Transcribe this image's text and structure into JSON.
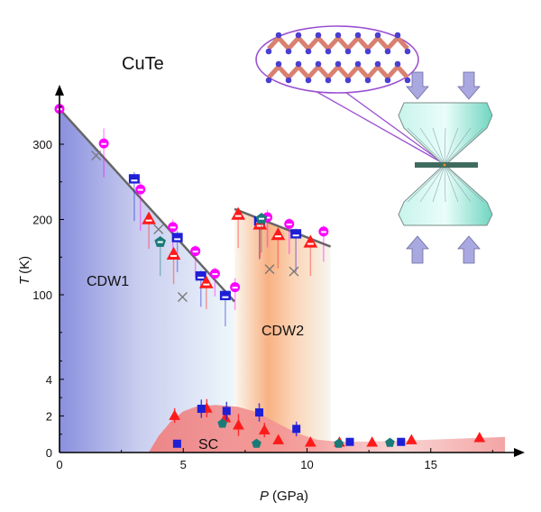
{
  "chart_data": {
    "type": "scatter",
    "title": "CuTe",
    "xlabel_italic": "P",
    "xlabel_unit": "(GPa)",
    "ylabel_italic": "T",
    "ylabel_unit": "(K)",
    "xlim": [
      0,
      18.5
    ],
    "y_axis_broken": true,
    "ylim_lower": [
      0,
      6
    ],
    "ylim_upper": [
      36,
      370
    ],
    "x_ticks": [
      "0",
      "5",
      "10",
      "15"
    ],
    "x_tick_values": [
      0,
      5,
      10,
      15
    ],
    "y_ticks": [
      "0",
      "2",
      "4",
      "100",
      "200",
      "300"
    ],
    "y_tick_values": [
      0,
      2,
      4,
      100,
      200,
      300
    ],
    "grid": false,
    "regions": [
      {
        "label": "CDW1",
        "color": "#8a90de",
        "at": [
          1.2,
          113
        ]
      },
      {
        "label": "CDW2",
        "color": "#f8b183",
        "at": [
          8.0,
          72
        ]
      },
      {
        "label": "SC",
        "color": "#f07d7d",
        "at": [
          5.0,
          0.5
        ]
      }
    ],
    "fit_lines": [
      {
        "region": "CDW1",
        "from": [
          0,
          347
        ],
        "to": [
          7.07,
          91
        ],
        "color": "#666666"
      },
      {
        "region": "CDW2",
        "from": [
          7.07,
          214
        ],
        "to": [
          10.95,
          164
        ],
        "color": "#666666"
      }
    ],
    "sc_dome_boundary": [
      [
        3.6,
        0
      ],
      [
        4.0,
        0.9
      ],
      [
        4.5,
        1.7
      ],
      [
        5.0,
        2.25
      ],
      [
        5.5,
        2.5
      ],
      [
        6.3,
        2.6
      ],
      [
        7.2,
        2.5
      ],
      [
        8.0,
        2.2
      ],
      [
        8.8,
        1.6
      ],
      [
        9.6,
        1.05
      ],
      [
        10.4,
        0.7
      ],
      [
        11.2,
        0.6
      ],
      [
        12.5,
        0.6
      ],
      [
        14,
        0.65
      ],
      [
        16,
        0.75
      ],
      [
        18,
        0.85
      ],
      [
        18,
        0
      ]
    ],
    "series": [
      {
        "marker": "half-filled-circle",
        "color": "#ff00ff",
        "points": [
          [
            0,
            347,
            0,
            0
          ],
          [
            1.79,
            301,
            45,
            20
          ],
          [
            3.27,
            240,
            55,
            10
          ],
          [
            4.58,
            190,
            40,
            10
          ],
          [
            5.49,
            158,
            35,
            8
          ],
          [
            6.28,
            128,
            30,
            8
          ],
          [
            7.09,
            110,
            30,
            12
          ],
          [
            8.4,
            203,
            40,
            10
          ],
          [
            9.28,
            194,
            40,
            8
          ],
          [
            10.67,
            184,
            40,
            8
          ]
        ]
      },
      {
        "marker": "half-filled-square",
        "color": "#1f1fd6",
        "points": [
          [
            3.02,
            253,
            55,
            10
          ],
          [
            4.76,
            175,
            45,
            10
          ],
          [
            5.71,
            124,
            40,
            8
          ],
          [
            6.7,
            98,
            40,
            8
          ],
          [
            8.08,
            197,
            50,
            10
          ],
          [
            9.55,
            180,
            50,
            8
          ]
        ]
      },
      {
        "marker": "half-filled-triangle",
        "color": "#ff1a1a",
        "points": [
          [
            3.61,
            201,
            40,
            8
          ],
          [
            4.61,
            154,
            40,
            8
          ],
          [
            5.93,
            116,
            35,
            8
          ],
          [
            7.22,
            207,
            45,
            8
          ],
          [
            8.1,
            194,
            45,
            8
          ],
          [
            8.83,
            180,
            45,
            8
          ],
          [
            10.14,
            170,
            45,
            8
          ]
        ]
      },
      {
        "marker": "half-filled-pentagon",
        "color": "#1a7a78",
        "points": [
          [
            4.07,
            170,
            45,
            8
          ],
          [
            8.16,
            201,
            45,
            8
          ]
        ]
      },
      {
        "marker": "cross",
        "color": "#777777",
        "points": [
          [
            1.48,
            285,
            0,
            0
          ],
          [
            4.0,
            187,
            0,
            0
          ],
          [
            4.97,
            97,
            0,
            0
          ],
          [
            8.49,
            134,
            0,
            0
          ],
          [
            9.47,
            131,
            0,
            0
          ]
        ]
      },
      {
        "marker": "filled-triangle",
        "color": "#ff1a1a",
        "points": [
          [
            4.65,
            2.02,
            0.4,
            0.4
          ],
          [
            5.95,
            2.42,
            0.5,
            0.5
          ],
          [
            6.7,
            1.9,
            0.4,
            0.4
          ],
          [
            7.23,
            1.5,
            0.6,
            0.6
          ],
          [
            8.28,
            1.23,
            0.4,
            0.4
          ],
          [
            8.84,
            0.69,
            0.2,
            0.2
          ],
          [
            10.14,
            0.56,
            0,
            0
          ],
          [
            11.31,
            0.56,
            0,
            0
          ],
          [
            12.63,
            0.56,
            0,
            0
          ],
          [
            14.22,
            0.69,
            0.1,
            0.1
          ],
          [
            16.97,
            0.81,
            0.1,
            0.1
          ]
        ]
      },
      {
        "marker": "filled-square",
        "color": "#1f1fd6",
        "points": [
          [
            4.75,
            0.48,
            0.2,
            0.2
          ],
          [
            5.73,
            2.39,
            0.5,
            0.5
          ],
          [
            6.75,
            2.27,
            0.5,
            0.5
          ],
          [
            8.07,
            2.19,
            0.5,
            0.5
          ],
          [
            9.57,
            1.29,
            0.4,
            0.4
          ],
          [
            11.73,
            0.58,
            0,
            0
          ],
          [
            13.8,
            0.58,
            0,
            0
          ]
        ]
      },
      {
        "marker": "filled-pentagon",
        "color": "#1a7a78",
        "points": [
          [
            6.58,
            1.58,
            0.2,
            0.2
          ],
          [
            7.96,
            0.48,
            0,
            0
          ],
          [
            11.28,
            0.48,
            0,
            0
          ],
          [
            13.35,
            0.53,
            0,
            0
          ]
        ]
      }
    ]
  },
  "inset": {
    "crystal_colors": {
      "cu": "#d98070",
      "te": "#4a3fd0",
      "outline": "#9b50d2"
    },
    "diamond_color": "#9fe8da",
    "gasket_color": "#3f6b5e",
    "arrow_color": "#a9a8e0"
  }
}
